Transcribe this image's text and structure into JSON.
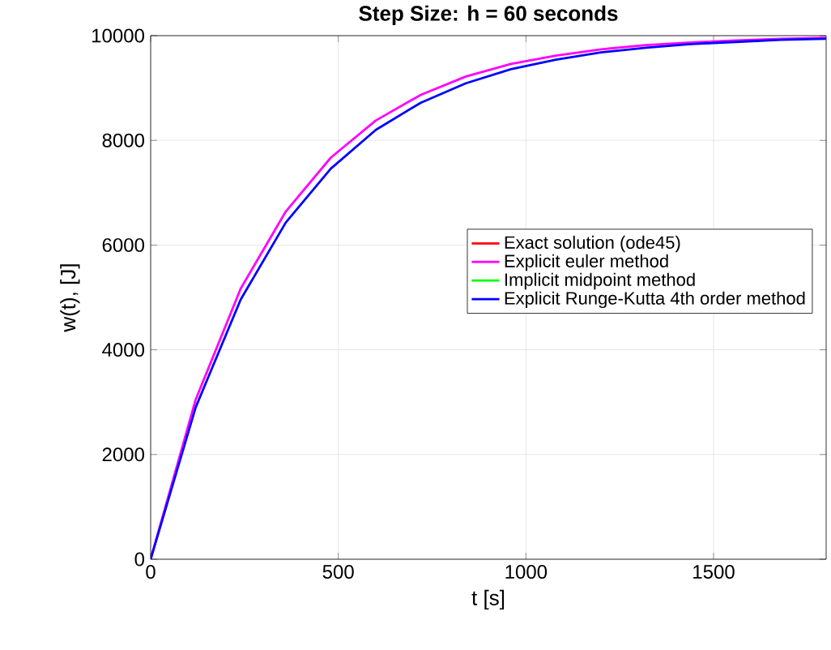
{
  "chart_data": {
    "type": "line",
    "title": "Step Size: h = 60 seconds",
    "xlabel": "t [s]",
    "ylabel": "w(t), [J]",
    "x": [
      0,
      120,
      240,
      360,
      480,
      600,
      720,
      840,
      960,
      1080,
      1200,
      1320,
      1440,
      1560,
      1680,
      1800
    ],
    "series": [
      {
        "name": "Exact solution (ode45)",
        "color": "#ff0000",
        "values": [
          null,
          null,
          null,
          null,
          null,
          null,
          null,
          null,
          null,
          null,
          null,
          null,
          null,
          null,
          null,
          null
        ]
      },
      {
        "name": "Explicit euler method",
        "color": "#ff00ff",
        "values": [
          0,
          3050,
          5170,
          6640,
          7670,
          8380,
          8870,
          9220,
          9460,
          9620,
          9740,
          9820,
          9870,
          9910,
          9940,
          9960
        ]
      },
      {
        "name": "Implicit midpoint method",
        "color": "#00ff00",
        "values": [
          null,
          null,
          null,
          null,
          null,
          null,
          null,
          null,
          null,
          null,
          null,
          null,
          null,
          null,
          null,
          null
        ]
      },
      {
        "name": "Explicit Runge-Kutta 4th order method",
        "color": "#0000ff",
        "values": [
          0,
          2900,
          4960,
          6430,
          7460,
          8200,
          8720,
          9090,
          9360,
          9540,
          9680,
          9770,
          9840,
          9880,
          9920,
          9940
        ]
      }
    ],
    "xlim": [
      0,
      1800
    ],
    "xticks": [
      0,
      500,
      1000,
      1500
    ],
    "ylim": [
      0,
      10000
    ],
    "yticks": [
      0,
      2000,
      4000,
      6000,
      8000,
      10000
    ],
    "grid": true,
    "legend": "right",
    "marker": "none",
    "line_style": "solid"
  }
}
